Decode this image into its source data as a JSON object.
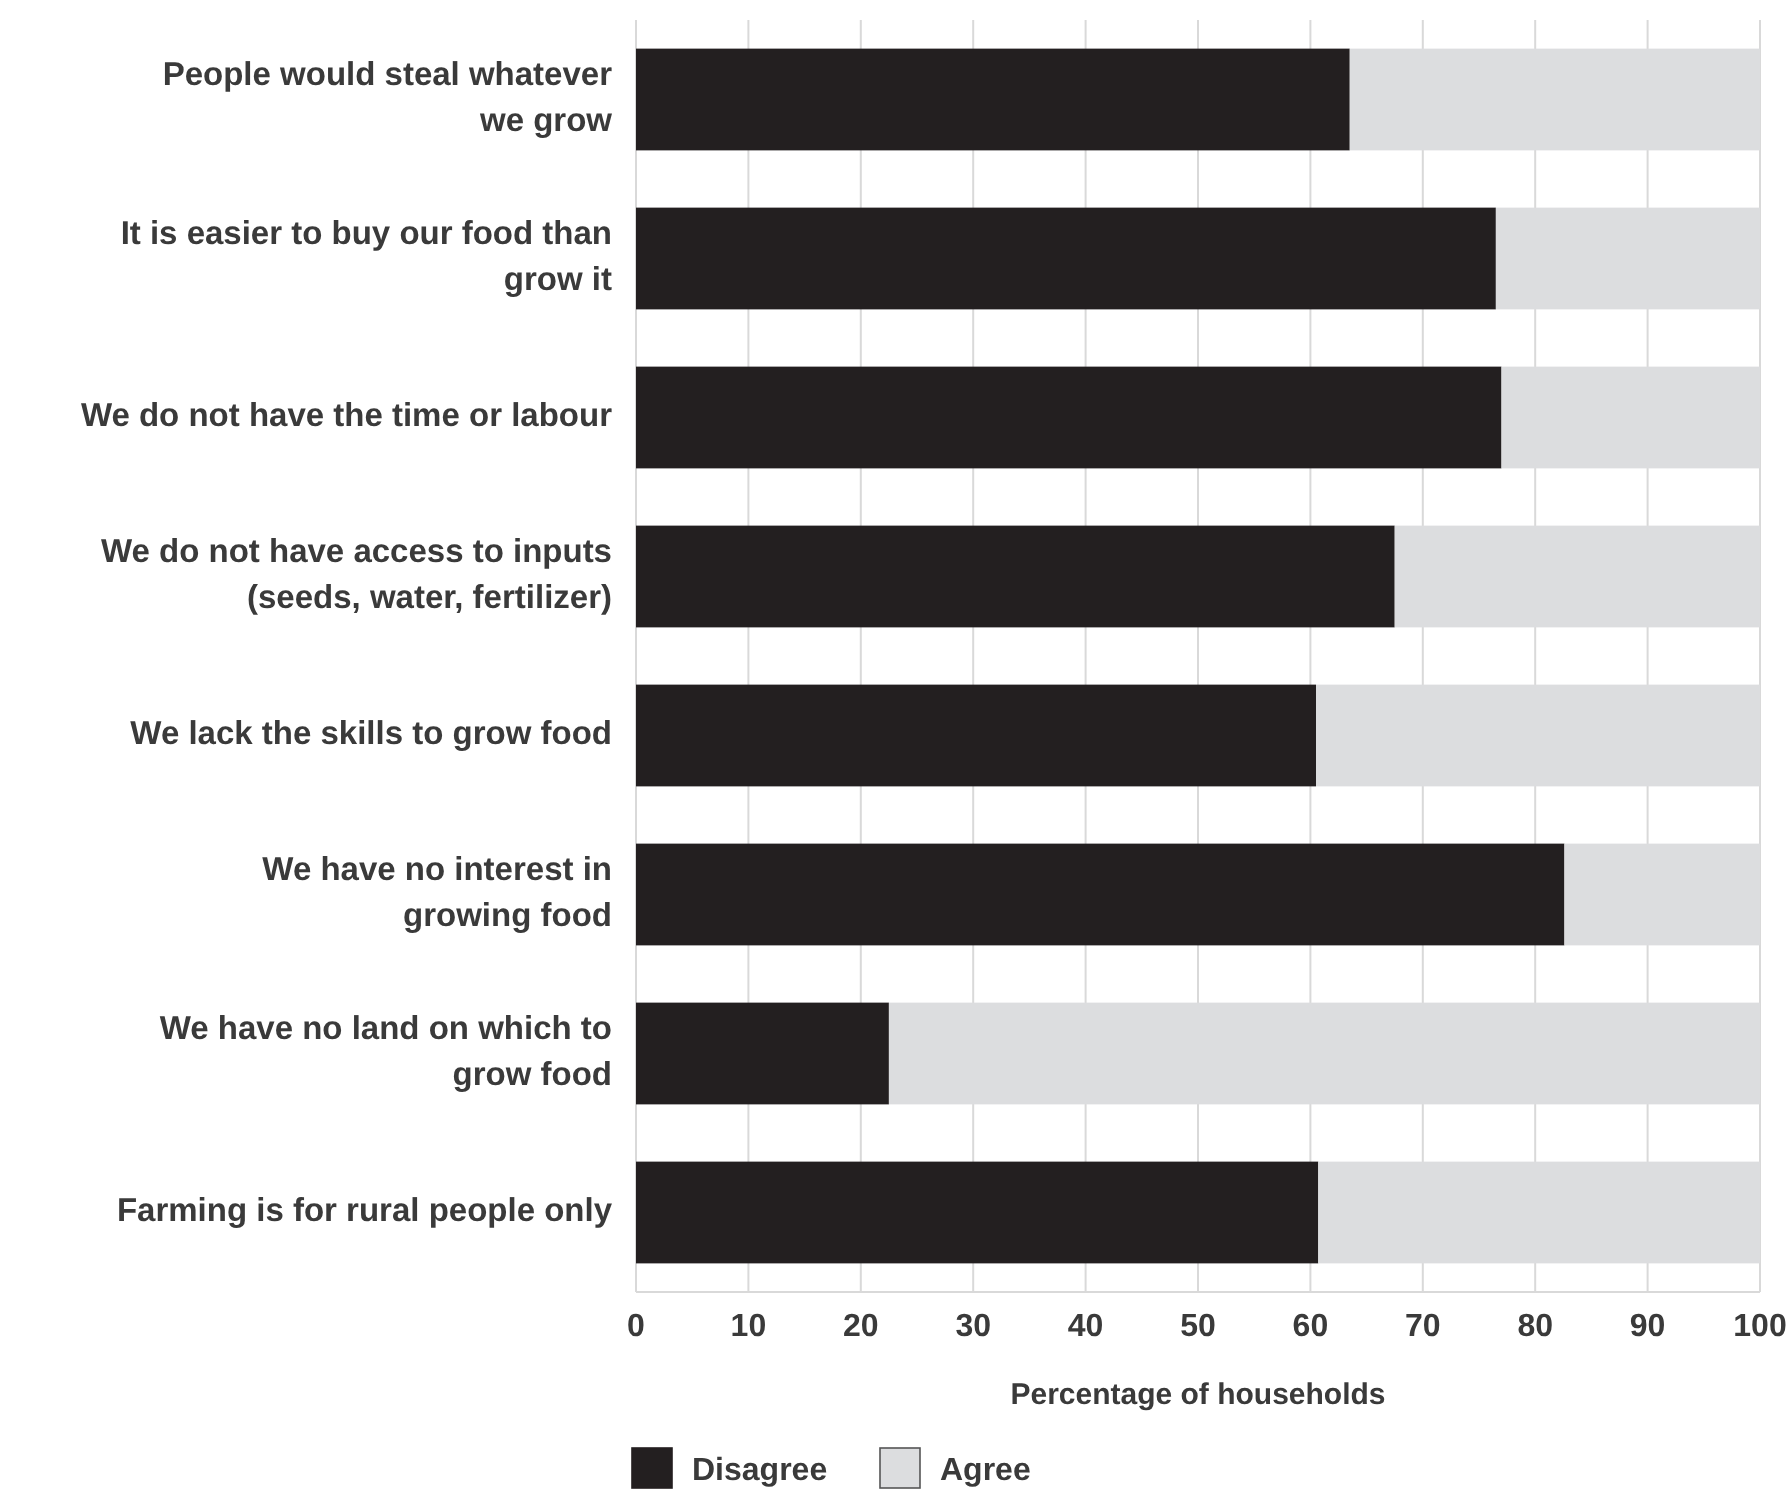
{
  "chart_data": {
    "type": "bar",
    "orientation": "horizontal",
    "stacked": true,
    "categories": [
      "People would steal whatever\nwe grow",
      "It is easier to buy our food than\ngrow it",
      "We do not have the time or labour",
      "We do not have access to inputs\n(seeds, water, fertilizer)",
      "We lack the skills to grow food",
      "We have no interest in\ngrowing food",
      "We have no land on which to\ngrow food",
      "Farming is for rural people only"
    ],
    "series": [
      {
        "name": "Disagree",
        "color": "#231f20",
        "values": [
          63.5,
          76.5,
          77,
          67.5,
          60.5,
          82.6,
          22.5,
          60.7
        ]
      },
      {
        "name": "Agree",
        "color": "#dcdddf",
        "values": [
          36.5,
          23.5,
          23,
          32.5,
          39.5,
          17.4,
          77.5,
          39.3
        ]
      }
    ],
    "xlim": [
      0,
      100
    ],
    "xticks": [
      0,
      10,
      20,
      30,
      40,
      50,
      60,
      70,
      80,
      90,
      100
    ],
    "xlabel": "Percentage of households",
    "grid": "x",
    "legend": "bottom"
  }
}
